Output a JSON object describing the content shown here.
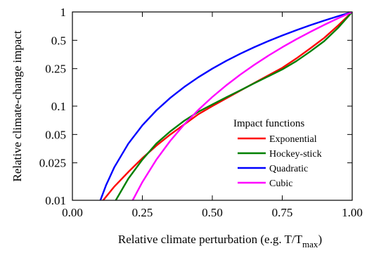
{
  "chart_data": {
    "type": "line",
    "xlabel": "Relative climate perturbation (e.g. T/T",
    "xlabel_sub": "max",
    "xlabel_close": ")",
    "ylabel": "Relative climate-change impact",
    "xlim": [
      0,
      1
    ],
    "ylim": [
      0.01,
      1
    ],
    "y_scale": "log",
    "grid": false,
    "legend_title": "Impact functions",
    "legend_position": "lower-right",
    "x_ticks": [
      {
        "value": 0,
        "label": "0.00"
      },
      {
        "value": 0.25,
        "label": "0.25"
      },
      {
        "value": 0.5,
        "label": "0.50"
      },
      {
        "value": 0.75,
        "label": "0.75"
      },
      {
        "value": 1,
        "label": "1.00"
      }
    ],
    "y_ticks": [
      {
        "value": 1,
        "label": "1"
      },
      {
        "value": 0.5,
        "label": "0.5"
      },
      {
        "value": 0.25,
        "label": "0.25"
      },
      {
        "value": 0.1,
        "label": "0.1"
      },
      {
        "value": 0.05,
        "label": "0.05"
      },
      {
        "value": 0.025,
        "label": "0.025"
      },
      {
        "value": 0.01,
        "label": "0.01"
      }
    ],
    "series": [
      {
        "name": "Exponential",
        "color": "#ff0000",
        "x": [
          0.11,
          0.15,
          0.2,
          0.25,
          0.3,
          0.35,
          0.4,
          0.45,
          0.5,
          0.55,
          0.6,
          0.65,
          0.7,
          0.75,
          0.8,
          0.85,
          0.9,
          0.95,
          1.0
        ],
        "y": [
          0.01,
          0.014,
          0.02,
          0.028,
          0.038,
          0.05,
          0.064,
          0.082,
          0.1,
          0.121,
          0.146,
          0.176,
          0.212,
          0.255,
          0.32,
          0.41,
          0.53,
          0.72,
          1.0
        ]
      },
      {
        "name": "Hockey-stick",
        "color": "#008000",
        "x": [
          0.155,
          0.2,
          0.25,
          0.3,
          0.35,
          0.4,
          0.45,
          0.5,
          0.55,
          0.6,
          0.65,
          0.7,
          0.75,
          0.8,
          0.85,
          0.9,
          0.95,
          1.0
        ],
        "y": [
          0.01,
          0.017,
          0.027,
          0.04,
          0.054,
          0.07,
          0.087,
          0.104,
          0.124,
          0.147,
          0.175,
          0.207,
          0.245,
          0.3,
          0.38,
          0.49,
          0.68,
          1.0
        ]
      },
      {
        "name": "Quadratic",
        "color": "#0000ff",
        "x": [
          0.1,
          0.12,
          0.15,
          0.2,
          0.25,
          0.3,
          0.35,
          0.4,
          0.45,
          0.5,
          0.55,
          0.6,
          0.65,
          0.7,
          0.75,
          0.8,
          0.85,
          0.9,
          0.95,
          1.0
        ],
        "y": [
          0.01,
          0.0144,
          0.0225,
          0.04,
          0.0625,
          0.09,
          0.1225,
          0.16,
          0.2025,
          0.25,
          0.3025,
          0.36,
          0.4225,
          0.49,
          0.5625,
          0.64,
          0.7225,
          0.81,
          0.9025,
          1.0
        ]
      },
      {
        "name": "Cubic",
        "color": "#ff00ff",
        "x": [
          0.2154,
          0.25,
          0.3,
          0.35,
          0.4,
          0.45,
          0.5,
          0.55,
          0.6,
          0.65,
          0.7,
          0.75,
          0.8,
          0.85,
          0.9,
          0.95,
          1.0
        ],
        "y": [
          0.01,
          0.0156,
          0.027,
          0.0429,
          0.064,
          0.0911,
          0.125,
          0.1664,
          0.216,
          0.2746,
          0.343,
          0.4219,
          0.512,
          0.6141,
          0.729,
          0.8574,
          1.0
        ]
      }
    ]
  }
}
